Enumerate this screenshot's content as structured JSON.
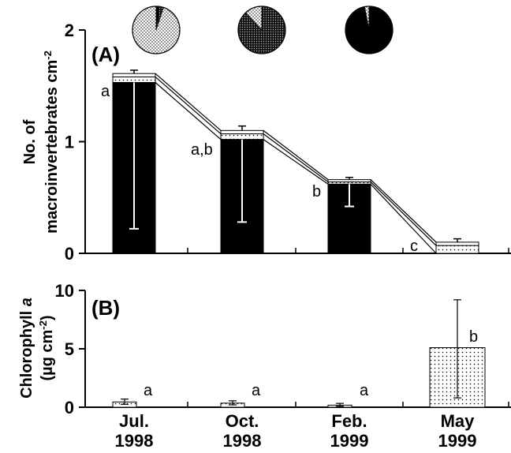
{
  "chart_data": [
    {
      "panel": "(A)",
      "type": "bar",
      "stacked": true,
      "ylabel_line1": "No. of",
      "ylabel_line2": "macroinvertebrates cm",
      "ylabel_sup": "-2",
      "ylim": [
        0,
        2
      ],
      "yticks": [
        "0",
        "1",
        "2"
      ],
      "categories": [
        "Jul. 1998",
        "Oct. 1998",
        "Feb. 1999",
        "May 1999"
      ],
      "series": [
        {
          "pattern": "solid-black",
          "values": [
            1.53,
            1.02,
            0.62,
            0.0
          ]
        },
        {
          "pattern": "dotted",
          "values": [
            0.05,
            0.05,
            0.02,
            0.07
          ]
        },
        {
          "pattern": "white",
          "values": [
            0.03,
            0.03,
            0.02,
            0.03
          ]
        }
      ],
      "totals": [
        1.61,
        1.1,
        0.66,
        0.1
      ],
      "error_upper": [
        0.03,
        0.04,
        0.02,
        0.03
      ],
      "error_lower_black": [
        0.22,
        0.28,
        0.42,
        null
      ],
      "significance": [
        "a",
        "a,b",
        "b",
        "c"
      ],
      "pies": [
        {
          "black": 0.02,
          "gray": 0.03,
          "dotted": 0.95
        },
        {
          "black": 0.0,
          "gray": 0.88,
          "dotted": 0.12
        },
        {
          "black": 0.97,
          "gray": 0.0,
          "dotted": 0.03
        }
      ],
      "colors": {
        "black": "#000000",
        "gray": "#4a4a4a",
        "dotted": "#ffffff"
      }
    },
    {
      "panel": "(B)",
      "type": "bar",
      "ylabel_line1": "Chlorophyll ",
      "ylabel_italic": "a",
      "ylabel_line2a": "(µg cm",
      "ylabel_sup": "-2",
      "ylabel_line2b": ")",
      "ylim": [
        0,
        10
      ],
      "yticks": [
        "0",
        "5",
        "10"
      ],
      "categories": [
        "Jul. 1998",
        "Oct. 1998",
        "Feb. 1999",
        "May 1999"
      ],
      "values": [
        0.45,
        0.35,
        0.18,
        5.1
      ],
      "error_upper": [
        0.25,
        0.2,
        0.15,
        4.1
      ],
      "error_lower": [
        0.2,
        0.15,
        0.1,
        4.3
      ],
      "significance": [
        "a",
        "a",
        "a",
        "b"
      ]
    }
  ],
  "x_labels": [
    {
      "line1": "Jul.",
      "line2": "1998"
    },
    {
      "line1": "Oct.",
      "line2": "1998"
    },
    {
      "line1": "Feb.",
      "line2": "1999"
    },
    {
      "line1": "May",
      "line2": "1999"
    }
  ]
}
